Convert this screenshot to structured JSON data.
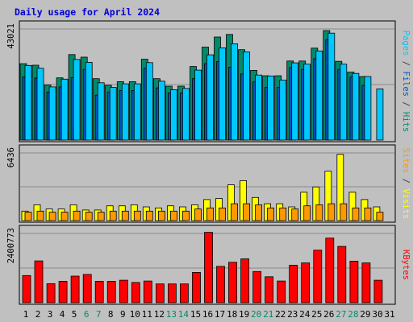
{
  "chart_data": {
    "type": "bar",
    "title": "Daily usage for April 2024",
    "x": {
      "days": [
        "1",
        "2",
        "3",
        "4",
        "5",
        "6",
        "7",
        "8",
        "9",
        "10",
        "11",
        "12",
        "13",
        "14",
        "15",
        "16",
        "17",
        "18",
        "19",
        "20",
        "21",
        "22",
        "23",
        "24",
        "25",
        "26",
        "27",
        "28",
        "29",
        "30",
        "31"
      ],
      "weekend_days": [
        "6",
        "7",
        "13",
        "14",
        "20",
        "21",
        "27",
        "28"
      ]
    },
    "panels": [
      {
        "name": "top",
        "max_label": "43021",
        "ylim": [
          0,
          43021
        ],
        "grid": true,
        "side_labels": [
          {
            "text": "Pages",
            "color": "#00c8ff"
          },
          {
            "text": " / ",
            "color": "#3b3b3b"
          },
          {
            "text": "Files",
            "color": "#0058c8"
          },
          {
            "text": " / ",
            "color": "#3b3b3b"
          },
          {
            "text": "Hits",
            "color": "#008a6a"
          }
        ],
        "series": [
          {
            "name": "Hits",
            "color": "#008a6a",
            "values": [
              29600,
              29000,
              21300,
              24100,
              33100,
              32100,
              23800,
              21200,
              22600,
              22600,
              31300,
              23800,
              20900,
              20900,
              28500,
              36000,
              39900,
              40900,
              35000,
              27000,
              24900,
              24900,
              30600,
              30600,
              35600,
              42400,
              30500,
              26300,
              24600,
              0,
              0
            ]
          },
          {
            "name": "Files",
            "color": "#0058c8",
            "values": [
              24400,
              24000,
              18600,
              20600,
              24200,
              27400,
              17400,
              18600,
              19200,
              19200,
              27800,
              20200,
              18200,
              18200,
              23800,
              29600,
              30400,
              28200,
              25600,
              22500,
              20400,
              20400,
              28100,
              27400,
              31500,
              38800,
              27400,
              24400,
              21200,
              0,
              0
            ]
          },
          {
            "name": "Pages",
            "color": "#00c8ff",
            "values": [
              28900,
              27800,
              20600,
              23600,
              31200,
              30100,
              22200,
              20400,
              21800,
              21800,
              30000,
              22800,
              19500,
              20000,
              27100,
              33000,
              35700,
              37300,
              34100,
              25200,
              24800,
              23200,
              29900,
              29400,
              34500,
              41400,
              29400,
              25800,
              24600,
              19800,
              0
            ]
          }
        ]
      },
      {
        "name": "middle",
        "max_label": "6436",
        "ylim": [
          0,
          6436
        ],
        "grid": true,
        "side_labels": [
          {
            "text": "Sites",
            "color": "#ff9900"
          },
          {
            "text": " / ",
            "color": "#3b3b3b"
          },
          {
            "text": "Visits",
            "color": "#ffff00"
          }
        ],
        "series": [
          {
            "name": "Visits",
            "color": "#ffff00",
            "values": [
              900,
              1500,
              1100,
              1100,
              1500,
              1000,
              1000,
              1400,
              1400,
              1500,
              1300,
              1200,
              1400,
              1300,
              1500,
              2000,
              2100,
              3400,
              3800,
              2200,
              1600,
              1600,
              1300,
              2700,
              3200,
              4700,
              6300,
              2700,
              2000,
              1300,
              0
            ]
          },
          {
            "name": "Sites",
            "color": "#ff9900",
            "values": [
              800,
              900,
              800,
              800,
              900,
              800,
              800,
              900,
              900,
              900,
              900,
              900,
              900,
              900,
              1100,
              1200,
              1200,
              1600,
              1600,
              1500,
              1200,
              1200,
              1100,
              1400,
              1500,
              1600,
              1600,
              1200,
              1200,
              800,
              0
            ]
          }
        ]
      },
      {
        "name": "bottom",
        "max_label": "2400773",
        "ylim": [
          0,
          2400773
        ],
        "grid": true,
        "side_labels": [
          {
            "text": "KBytes",
            "color": "#ff0000"
          }
        ],
        "series": [
          {
            "name": "KBytes",
            "color": "#ff0000",
            "values": [
              940000,
              1450000,
              660000,
              740000,
              920000,
              980000,
              740000,
              740000,
              780000,
              700000,
              750000,
              650000,
              650000,
              650000,
              1050000,
              2440000,
              1260000,
              1400000,
              1520000,
              1080000,
              900000,
              750000,
              1300000,
              1380000,
              1820000,
              2240000,
              1950000,
              1440000,
              1380000,
              780000,
              0
            ]
          }
        ]
      }
    ]
  }
}
